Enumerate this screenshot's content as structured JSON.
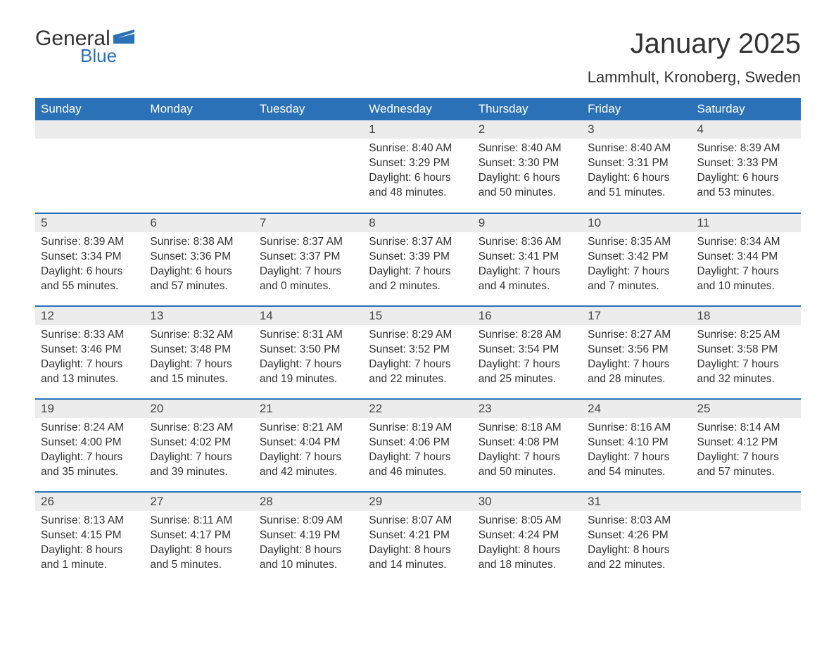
{
  "logo": {
    "general": "General",
    "blue": "Blue"
  },
  "title": "January 2025",
  "location": "Lammhult, Kronoberg, Sweden",
  "colors": {
    "header_bg": "#2b71b8",
    "header_text": "#ffffff",
    "daynum_bg": "#ececec",
    "text": "#333333",
    "page_bg": "#ffffff"
  },
  "weekdays": [
    "Sunday",
    "Monday",
    "Tuesday",
    "Wednesday",
    "Thursday",
    "Friday",
    "Saturday"
  ],
  "weeks": [
    [
      null,
      null,
      null,
      {
        "num": "1",
        "sunrise": "Sunrise: 8:40 AM",
        "sunset": "Sunset: 3:29 PM",
        "daylight": "Daylight: 6 hours and 48 minutes."
      },
      {
        "num": "2",
        "sunrise": "Sunrise: 8:40 AM",
        "sunset": "Sunset: 3:30 PM",
        "daylight": "Daylight: 6 hours and 50 minutes."
      },
      {
        "num": "3",
        "sunrise": "Sunrise: 8:40 AM",
        "sunset": "Sunset: 3:31 PM",
        "daylight": "Daylight: 6 hours and 51 minutes."
      },
      {
        "num": "4",
        "sunrise": "Sunrise: 8:39 AM",
        "sunset": "Sunset: 3:33 PM",
        "daylight": "Daylight: 6 hours and 53 minutes."
      }
    ],
    [
      {
        "num": "5",
        "sunrise": "Sunrise: 8:39 AM",
        "sunset": "Sunset: 3:34 PM",
        "daylight": "Daylight: 6 hours and 55 minutes."
      },
      {
        "num": "6",
        "sunrise": "Sunrise: 8:38 AM",
        "sunset": "Sunset: 3:36 PM",
        "daylight": "Daylight: 6 hours and 57 minutes."
      },
      {
        "num": "7",
        "sunrise": "Sunrise: 8:37 AM",
        "sunset": "Sunset: 3:37 PM",
        "daylight": "Daylight: 7 hours and 0 minutes."
      },
      {
        "num": "8",
        "sunrise": "Sunrise: 8:37 AM",
        "sunset": "Sunset: 3:39 PM",
        "daylight": "Daylight: 7 hours and 2 minutes."
      },
      {
        "num": "9",
        "sunrise": "Sunrise: 8:36 AM",
        "sunset": "Sunset: 3:41 PM",
        "daylight": "Daylight: 7 hours and 4 minutes."
      },
      {
        "num": "10",
        "sunrise": "Sunrise: 8:35 AM",
        "sunset": "Sunset: 3:42 PM",
        "daylight": "Daylight: 7 hours and 7 minutes."
      },
      {
        "num": "11",
        "sunrise": "Sunrise: 8:34 AM",
        "sunset": "Sunset: 3:44 PM",
        "daylight": "Daylight: 7 hours and 10 minutes."
      }
    ],
    [
      {
        "num": "12",
        "sunrise": "Sunrise: 8:33 AM",
        "sunset": "Sunset: 3:46 PM",
        "daylight": "Daylight: 7 hours and 13 minutes."
      },
      {
        "num": "13",
        "sunrise": "Sunrise: 8:32 AM",
        "sunset": "Sunset: 3:48 PM",
        "daylight": "Daylight: 7 hours and 15 minutes."
      },
      {
        "num": "14",
        "sunrise": "Sunrise: 8:31 AM",
        "sunset": "Sunset: 3:50 PM",
        "daylight": "Daylight: 7 hours and 19 minutes."
      },
      {
        "num": "15",
        "sunrise": "Sunrise: 8:29 AM",
        "sunset": "Sunset: 3:52 PM",
        "daylight": "Daylight: 7 hours and 22 minutes."
      },
      {
        "num": "16",
        "sunrise": "Sunrise: 8:28 AM",
        "sunset": "Sunset: 3:54 PM",
        "daylight": "Daylight: 7 hours and 25 minutes."
      },
      {
        "num": "17",
        "sunrise": "Sunrise: 8:27 AM",
        "sunset": "Sunset: 3:56 PM",
        "daylight": "Daylight: 7 hours and 28 minutes."
      },
      {
        "num": "18",
        "sunrise": "Sunrise: 8:25 AM",
        "sunset": "Sunset: 3:58 PM",
        "daylight": "Daylight: 7 hours and 32 minutes."
      }
    ],
    [
      {
        "num": "19",
        "sunrise": "Sunrise: 8:24 AM",
        "sunset": "Sunset: 4:00 PM",
        "daylight": "Daylight: 7 hours and 35 minutes."
      },
      {
        "num": "20",
        "sunrise": "Sunrise: 8:23 AM",
        "sunset": "Sunset: 4:02 PM",
        "daylight": "Daylight: 7 hours and 39 minutes."
      },
      {
        "num": "21",
        "sunrise": "Sunrise: 8:21 AM",
        "sunset": "Sunset: 4:04 PM",
        "daylight": "Daylight: 7 hours and 42 minutes."
      },
      {
        "num": "22",
        "sunrise": "Sunrise: 8:19 AM",
        "sunset": "Sunset: 4:06 PM",
        "daylight": "Daylight: 7 hours and 46 minutes."
      },
      {
        "num": "23",
        "sunrise": "Sunrise: 8:18 AM",
        "sunset": "Sunset: 4:08 PM",
        "daylight": "Daylight: 7 hours and 50 minutes."
      },
      {
        "num": "24",
        "sunrise": "Sunrise: 8:16 AM",
        "sunset": "Sunset: 4:10 PM",
        "daylight": "Daylight: 7 hours and 54 minutes."
      },
      {
        "num": "25",
        "sunrise": "Sunrise: 8:14 AM",
        "sunset": "Sunset: 4:12 PM",
        "daylight": "Daylight: 7 hours and 57 minutes."
      }
    ],
    [
      {
        "num": "26",
        "sunrise": "Sunrise: 8:13 AM",
        "sunset": "Sunset: 4:15 PM",
        "daylight": "Daylight: 8 hours and 1 minute."
      },
      {
        "num": "27",
        "sunrise": "Sunrise: 8:11 AM",
        "sunset": "Sunset: 4:17 PM",
        "daylight": "Daylight: 8 hours and 5 minutes."
      },
      {
        "num": "28",
        "sunrise": "Sunrise: 8:09 AM",
        "sunset": "Sunset: 4:19 PM",
        "daylight": "Daylight: 8 hours and 10 minutes."
      },
      {
        "num": "29",
        "sunrise": "Sunrise: 8:07 AM",
        "sunset": "Sunset: 4:21 PM",
        "daylight": "Daylight: 8 hours and 14 minutes."
      },
      {
        "num": "30",
        "sunrise": "Sunrise: 8:05 AM",
        "sunset": "Sunset: 4:24 PM",
        "daylight": "Daylight: 8 hours and 18 minutes."
      },
      {
        "num": "31",
        "sunrise": "Sunrise: 8:03 AM",
        "sunset": "Sunset: 4:26 PM",
        "daylight": "Daylight: 8 hours and 22 minutes."
      },
      null
    ]
  ]
}
